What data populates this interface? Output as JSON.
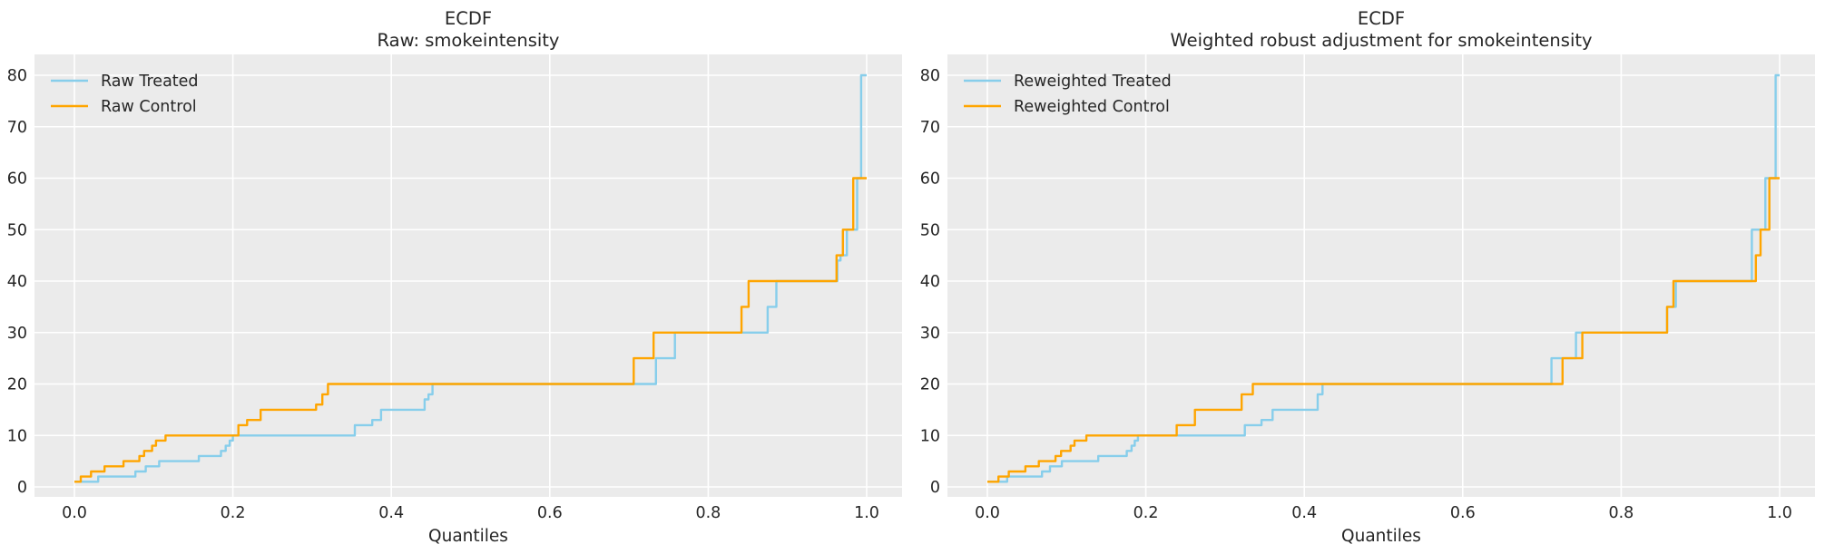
{
  "figure": {
    "background": "#ffffff",
    "axes_background": "#ebebeb",
    "grid_color": "#ffffff",
    "text_color": "#262626",
    "treated_color": "#87ceeb",
    "control_color": "#ffa500"
  },
  "chart_data": [
    {
      "type": "line",
      "step": "post",
      "title": "ECDF",
      "subtitle": "Raw: smokeintensity",
      "xlabel": "Quantiles",
      "ylabel": "",
      "xlim": [
        -0.05,
        1.045
      ],
      "ylim": [
        -2,
        84
      ],
      "xticks": [
        "0.0",
        "0.2",
        "0.4",
        "0.6",
        "0.8",
        "1.0"
      ],
      "xtick_values": [
        0.0,
        0.2,
        0.4,
        0.6,
        0.8,
        1.0
      ],
      "yticks": [
        0,
        10,
        20,
        30,
        40,
        50,
        60,
        70,
        80
      ],
      "grid": true,
      "legend_position": "upper-left",
      "series": [
        {
          "name": "Raw Treated",
          "color": "#87ceeb",
          "points": [
            [
              0,
              1
            ],
            [
              0.03,
              2
            ],
            [
              0.077,
              3
            ],
            [
              0.09,
              4
            ],
            [
              0.107,
              5
            ],
            [
              0.157,
              6
            ],
            [
              0.185,
              7
            ],
            [
              0.191,
              8
            ],
            [
              0.196,
              9
            ],
            [
              0.2,
              10
            ],
            [
              0.354,
              12
            ],
            [
              0.376,
              13
            ],
            [
              0.387,
              15
            ],
            [
              0.442,
              17
            ],
            [
              0.447,
              18
            ],
            [
              0.452,
              20
            ],
            [
              0.734,
              25
            ],
            [
              0.758,
              30
            ],
            [
              0.875,
              35
            ],
            [
              0.886,
              40
            ],
            [
              0.963,
              44
            ],
            [
              0.967,
              45
            ],
            [
              0.975,
              50
            ],
            [
              0.988,
              60
            ],
            [
              0.993,
              80
            ],
            [
              1.0,
              80
            ]
          ]
        },
        {
          "name": "Raw Control",
          "color": "#ffa500",
          "points": [
            [
              0,
              1
            ],
            [
              0.008,
              2
            ],
            [
              0.021,
              3
            ],
            [
              0.038,
              4
            ],
            [
              0.062,
              5
            ],
            [
              0.082,
              6
            ],
            [
              0.088,
              7
            ],
            [
              0.098,
              8
            ],
            [
              0.103,
              9
            ],
            [
              0.115,
              10
            ],
            [
              0.207,
              12
            ],
            [
              0.218,
              13
            ],
            [
              0.235,
              15
            ],
            [
              0.305,
              16
            ],
            [
              0.313,
              18
            ],
            [
              0.32,
              20
            ],
            [
              0.706,
              25
            ],
            [
              0.731,
              30
            ],
            [
              0.842,
              35
            ],
            [
              0.851,
              40
            ],
            [
              0.962,
              45
            ],
            [
              0.97,
              50
            ],
            [
              0.983,
              60
            ],
            [
              1.0,
              60
            ]
          ]
        }
      ]
    },
    {
      "type": "line",
      "step": "post",
      "title": "ECDF",
      "subtitle": "Weighted robust adjustment for smokeintensity",
      "xlabel": "Quantiles",
      "ylabel": "",
      "xlim": [
        -0.05,
        1.045
      ],
      "ylim": [
        -2,
        84
      ],
      "xticks": [
        "0.0",
        "0.2",
        "0.4",
        "0.6",
        "0.8",
        "1.0"
      ],
      "xtick_values": [
        0.0,
        0.2,
        0.4,
        0.6,
        0.8,
        1.0
      ],
      "yticks": [
        0,
        10,
        20,
        30,
        40,
        50,
        60,
        70,
        80
      ],
      "grid": true,
      "legend_position": "upper-left",
      "series": [
        {
          "name": "Reweighted Treated",
          "color": "#87ceeb",
          "points": [
            [
              0,
              1
            ],
            [
              0.025,
              2
            ],
            [
              0.069,
              3
            ],
            [
              0.079,
              4
            ],
            [
              0.094,
              5
            ],
            [
              0.14,
              6
            ],
            [
              0.176,
              7
            ],
            [
              0.182,
              8
            ],
            [
              0.186,
              9
            ],
            [
              0.19,
              10
            ],
            [
              0.325,
              12
            ],
            [
              0.346,
              13
            ],
            [
              0.36,
              15
            ],
            [
              0.417,
              18
            ],
            [
              0.423,
              20
            ],
            [
              0.712,
              25
            ],
            [
              0.743,
              30
            ],
            [
              0.858,
              35
            ],
            [
              0.869,
              40
            ],
            [
              0.965,
              50
            ],
            [
              0.982,
              60
            ],
            [
              0.995,
              80
            ],
            [
              1.0,
              80
            ]
          ]
        },
        {
          "name": "Reweighted Control",
          "color": "#ffa500",
          "points": [
            [
              0,
              1
            ],
            [
              0.014,
              2
            ],
            [
              0.027,
              3
            ],
            [
              0.048,
              4
            ],
            [
              0.065,
              5
            ],
            [
              0.086,
              6
            ],
            [
              0.093,
              7
            ],
            [
              0.105,
              8
            ],
            [
              0.11,
              9
            ],
            [
              0.125,
              10
            ],
            [
              0.239,
              12
            ],
            [
              0.262,
              15
            ],
            [
              0.321,
              18
            ],
            [
              0.335,
              20
            ],
            [
              0.726,
              25
            ],
            [
              0.751,
              30
            ],
            [
              0.858,
              35
            ],
            [
              0.866,
              40
            ],
            [
              0.97,
              45
            ],
            [
              0.976,
              50
            ],
            [
              0.987,
              60
            ],
            [
              1.0,
              60
            ]
          ]
        }
      ]
    }
  ]
}
